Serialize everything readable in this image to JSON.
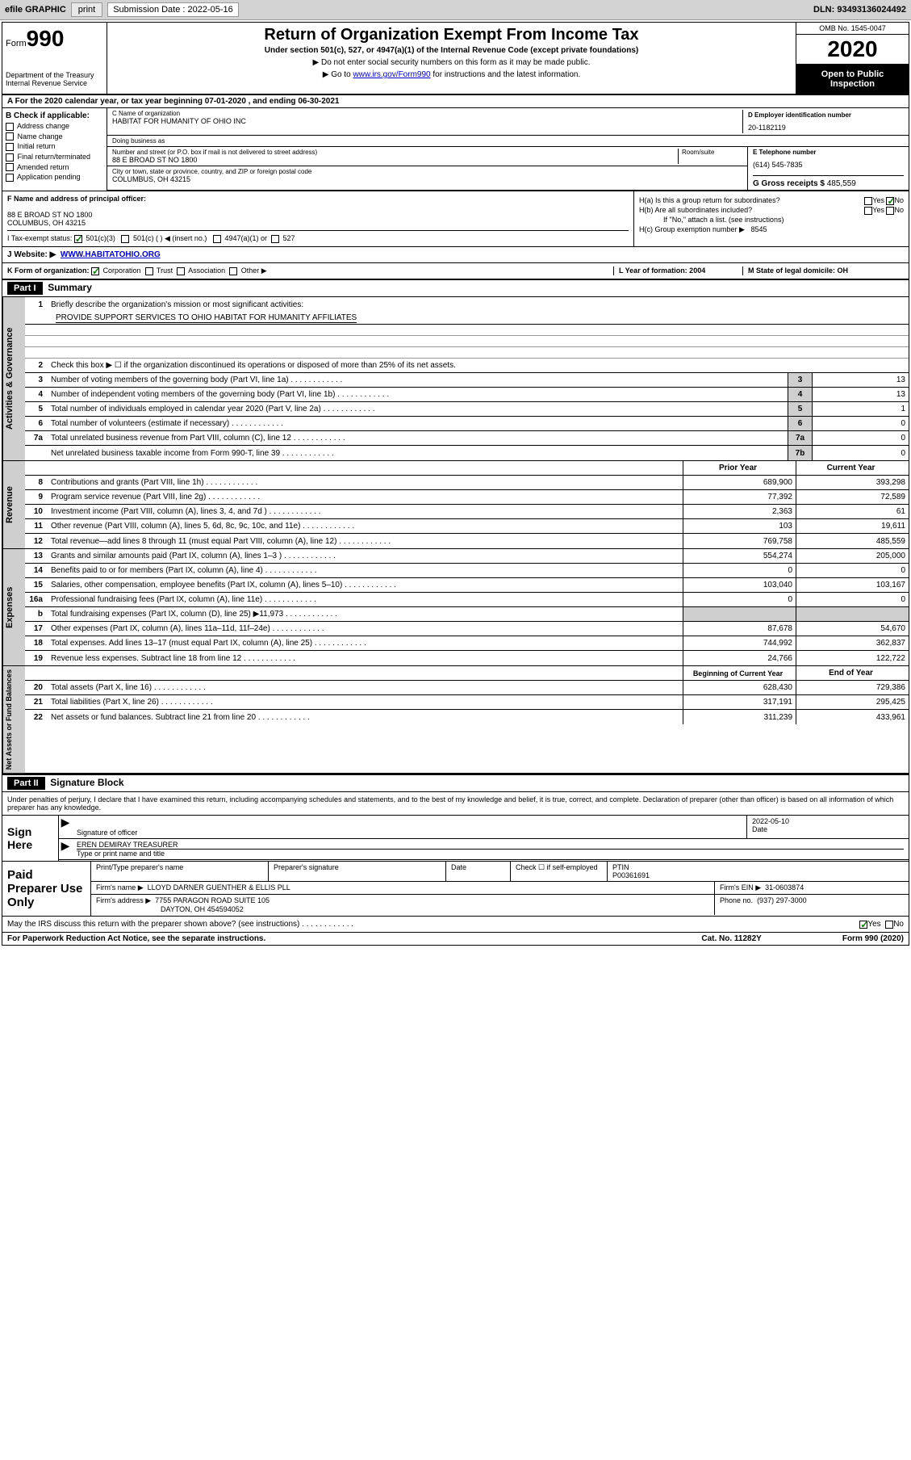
{
  "toolbar": {
    "efile": "efile GRAPHIC",
    "print": "print",
    "sub_label": "Submission Date : 2022-05-16",
    "dln": "DLN: 93493136024492"
  },
  "header": {
    "form": "Form",
    "num": "990",
    "dept": "Department of the Treasury\nInternal Revenue Service",
    "title": "Return of Organization Exempt From Income Tax",
    "sub": "Under section 501(c), 527, or 4947(a)(1) of the Internal Revenue Code (except private foundations)",
    "note1": "▶ Do not enter social security numbers on this form as it may be made public.",
    "note2_pre": "▶ Go to ",
    "note2_link": "www.irs.gov/Form990",
    "note2_post": " for instructions and the latest information.",
    "omb": "OMB No. 1545-0047",
    "year": "2020",
    "inspection": "Open to Public Inspection"
  },
  "lineA": "A For the 2020 calendar year, or tax year beginning 07-01-2020   , and ending 06-30-2021",
  "sectionB": {
    "hdr": "B Check if applicable:",
    "items": [
      "Address change",
      "Name change",
      "Initial return",
      "Final return/terminated",
      "Amended return",
      "Application pending"
    ]
  },
  "org": {
    "name_label": "C Name of organization",
    "name": "HABITAT FOR HUMANITY OF OHIO INC",
    "dba_label": "Doing business as",
    "dba": "",
    "street_label": "Number and street (or P.O. box if mail is not delivered to street address)",
    "street": "88 E BROAD ST NO 1800",
    "suite_label": "Room/suite",
    "city_label": "City or town, state or province, country, and ZIP or foreign postal code",
    "city": "COLUMBUS, OH  43215"
  },
  "ein": {
    "label": "D Employer identification number",
    "val": "20-1182119"
  },
  "phone": {
    "label": "E Telephone number",
    "val": "(614) 545-7835"
  },
  "gross": {
    "label": "G Gross receipts $",
    "val": "485,559"
  },
  "f": {
    "label": "F Name and address of principal officer:",
    "addr1": "88 E BROAD ST NO 1800",
    "addr2": "COLUMBUS, OH  43215"
  },
  "h": {
    "a": "H(a)  Is this a group return for subordinates?",
    "b": "H(b)  Are all subordinates included?",
    "note": "If \"No,\" attach a list. (see instructions)",
    "c": "H(c)  Group exemption number ▶",
    "c_val": "8545"
  },
  "i": {
    "label": "I   Tax-exempt status:",
    "opts": [
      "501(c)(3)",
      "501(c) (  ) ◀ (insert no.)",
      "4947(a)(1) or",
      "527"
    ]
  },
  "j": {
    "label": "J   Website: ▶",
    "val": "WWW.HABITATOHIO.ORG"
  },
  "k": {
    "label": "K Form of organization:",
    "opts": [
      "Corporation",
      "Trust",
      "Association",
      "Other ▶"
    ],
    "l": "L Year of formation: 2004",
    "m": "M State of legal domicile: OH"
  },
  "part1": {
    "badge": "Part I",
    "title": "Summary"
  },
  "governance": {
    "label": "Activities & Governance",
    "l1": "Briefly describe the organization's mission or most significant activities:",
    "mission": "PROVIDE SUPPORT SERVICES TO OHIO HABITAT FOR HUMANITY AFFILIATES",
    "l2": "Check this box ▶ ☐  if the organization discontinued its operations or disposed of more than 25% of its net assets.",
    "l3": "Number of voting members of the governing body (Part VI, line 1a)",
    "l4": "Number of independent voting members of the governing body (Part VI, line 1b)",
    "l5": "Total number of individuals employed in calendar year 2020 (Part V, line 2a)",
    "l6": "Total number of volunteers (estimate if necessary)",
    "l7a": "Total unrelated business revenue from Part VIII, column (C), line 12",
    "l7b": "Net unrelated business taxable income from Form 990-T, line 39",
    "v3": "13",
    "v4": "13",
    "v5": "1",
    "v6": "0",
    "v7a": "0",
    "v7b": "0"
  },
  "revenue": {
    "label": "Revenue",
    "hdr_prior": "Prior Year",
    "hdr_curr": "Current Year",
    "rows": [
      {
        "n": "8",
        "t": "Contributions and grants (Part VIII, line 1h)",
        "p": "689,900",
        "c": "393,298"
      },
      {
        "n": "9",
        "t": "Program service revenue (Part VIII, line 2g)",
        "p": "77,392",
        "c": "72,589"
      },
      {
        "n": "10",
        "t": "Investment income (Part VIII, column (A), lines 3, 4, and 7d )",
        "p": "2,363",
        "c": "61"
      },
      {
        "n": "11",
        "t": "Other revenue (Part VIII, column (A), lines 5, 6d, 8c, 9c, 10c, and 11e)",
        "p": "103",
        "c": "19,611"
      },
      {
        "n": "12",
        "t": "Total revenue—add lines 8 through 11 (must equal Part VIII, column (A), line 12)",
        "p": "769,758",
        "c": "485,559"
      }
    ]
  },
  "expenses": {
    "label": "Expenses",
    "rows": [
      {
        "n": "13",
        "t": "Grants and similar amounts paid (Part IX, column (A), lines 1–3 )",
        "p": "554,274",
        "c": "205,000"
      },
      {
        "n": "14",
        "t": "Benefits paid to or for members (Part IX, column (A), line 4)",
        "p": "0",
        "c": "0"
      },
      {
        "n": "15",
        "t": "Salaries, other compensation, employee benefits (Part IX, column (A), lines 5–10)",
        "p": "103,040",
        "c": "103,167"
      },
      {
        "n": "16a",
        "t": "Professional fundraising fees (Part IX, column (A), line 11e)",
        "p": "0",
        "c": "0"
      },
      {
        "n": "b",
        "t": "Total fundraising expenses (Part IX, column (D), line 25) ▶11,973",
        "p": "",
        "c": "",
        "grey": true
      },
      {
        "n": "17",
        "t": "Other expenses (Part IX, column (A), lines 11a–11d, 11f–24e)",
        "p": "87,678",
        "c": "54,670"
      },
      {
        "n": "18",
        "t": "Total expenses. Add lines 13–17 (must equal Part IX, column (A), line 25)",
        "p": "744,992",
        "c": "362,837"
      },
      {
        "n": "19",
        "t": "Revenue less expenses. Subtract line 18 from line 12",
        "p": "24,766",
        "c": "122,722"
      }
    ]
  },
  "netassets": {
    "label": "Net Assets or Fund Balances",
    "hdr_beg": "Beginning of Current Year",
    "hdr_end": "End of Year",
    "rows": [
      {
        "n": "20",
        "t": "Total assets (Part X, line 16)",
        "p": "628,430",
        "c": "729,386"
      },
      {
        "n": "21",
        "t": "Total liabilities (Part X, line 26)",
        "p": "317,191",
        "c": "295,425"
      },
      {
        "n": "22",
        "t": "Net assets or fund balances. Subtract line 21 from line 20",
        "p": "311,239",
        "c": "433,961"
      }
    ]
  },
  "part2": {
    "badge": "Part II",
    "title": "Signature Block"
  },
  "sig": {
    "note": "Under penalties of perjury, I declare that I have examined this return, including accompanying schedules and statements, and to the best of my knowledge and belief, it is true, correct, and complete. Declaration of preparer (other than officer) is based on all information of which preparer has any knowledge.",
    "here": "Sign Here",
    "officer_label": "Signature of officer",
    "date_label": "Date",
    "date": "2022-05-10",
    "name": "EREN DEMIRAY TREASURER",
    "name_label": "Type or print name and title"
  },
  "prep": {
    "label": "Paid Preparer Use Only",
    "name_label": "Print/Type preparer's name",
    "sig_label": "Preparer's signature",
    "date_label": "Date",
    "check_label": "Check ☐ if self-employed",
    "ptin_label": "PTIN",
    "ptin": "P00361691",
    "firm_label": "Firm's name   ▶",
    "firm": "LLOYD DARNER GUENTHER & ELLIS PLL",
    "ein_label": "Firm's EIN ▶",
    "ein": "31-0603874",
    "addr_label": "Firm's address ▶",
    "addr1": "7755 PARAGON ROAD SUITE 105",
    "addr2": "DAYTON, OH  454594052",
    "phone_label": "Phone no.",
    "phone": "(937) 297-3000"
  },
  "discuss": "May the IRS discuss this return with the preparer shown above? (see instructions)",
  "footer": {
    "l": "For Paperwork Reduction Act Notice, see the separate instructions.",
    "m": "Cat. No. 11282Y",
    "r": "Form 990 (2020)"
  }
}
